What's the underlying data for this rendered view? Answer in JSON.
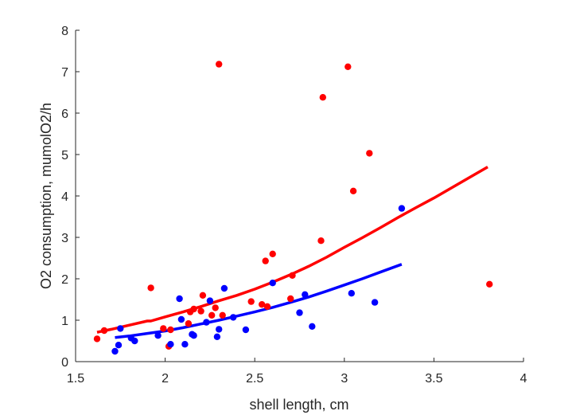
{
  "chart_data": {
    "type": "scatter",
    "title": "",
    "xlabel": "shell length, cm",
    "ylabel": "O2 consumption, mumolO2/h",
    "xlim": [
      1.5,
      4
    ],
    "ylim": [
      0,
      8
    ],
    "x_ticks": [
      1.5,
      2,
      2.5,
      3,
      3.5,
      4
    ],
    "x_tick_labels": [
      "1.5",
      "2",
      "2.5",
      "3",
      "3.5",
      "4"
    ],
    "y_ticks": [
      0,
      1,
      2,
      3,
      4,
      5,
      6,
      7,
      8
    ],
    "y_tick_labels": [
      "0",
      "1",
      "2",
      "3",
      "4",
      "5",
      "6",
      "7",
      "8"
    ],
    "grid": false,
    "series": [
      {
        "color": "#ff0000",
        "points": [
          {
            "x": 1.62,
            "y": 0.55
          },
          {
            "x": 1.66,
            "y": 0.75
          },
          {
            "x": 1.92,
            "y": 1.78
          },
          {
            "x": 1.99,
            "y": 0.8
          },
          {
            "x": 2.02,
            "y": 0.37
          },
          {
            "x": 2.03,
            "y": 0.77
          },
          {
            "x": 2.13,
            "y": 0.92
          },
          {
            "x": 2.14,
            "y": 1.2
          },
          {
            "x": 2.16,
            "y": 1.27
          },
          {
            "x": 2.2,
            "y": 1.22
          },
          {
            "x": 2.21,
            "y": 1.6
          },
          {
            "x": 2.26,
            "y": 1.12
          },
          {
            "x": 2.28,
            "y": 1.3
          },
          {
            "x": 2.3,
            "y": 7.18
          },
          {
            "x": 2.32,
            "y": 1.12
          },
          {
            "x": 2.48,
            "y": 1.45
          },
          {
            "x": 2.54,
            "y": 1.38
          },
          {
            "x": 2.56,
            "y": 2.43
          },
          {
            "x": 2.57,
            "y": 1.33
          },
          {
            "x": 2.6,
            "y": 2.6
          },
          {
            "x": 2.7,
            "y": 1.52
          },
          {
            "x": 2.71,
            "y": 2.08
          },
          {
            "x": 2.87,
            "y": 2.92
          },
          {
            "x": 2.88,
            "y": 6.38
          },
          {
            "x": 3.02,
            "y": 7.12
          },
          {
            "x": 3.05,
            "y": 4.12
          },
          {
            "x": 3.14,
            "y": 5.03
          },
          {
            "x": 3.81,
            "y": 1.87
          }
        ],
        "fit": {
          "x": [
            1.62,
            1.7,
            1.8,
            1.9,
            1.92,
            2.0,
            2.1,
            2.2,
            2.3,
            2.4,
            2.5,
            2.6,
            2.7,
            2.8,
            2.9,
            3.0,
            3.1,
            3.2,
            3.3,
            3.4,
            3.5,
            3.6,
            3.7,
            3.8
          ],
          "y": [
            0.71,
            0.78,
            0.88,
            0.98,
            0.98,
            1.08,
            1.2,
            1.33,
            1.47,
            1.6,
            1.75,
            1.92,
            2.1,
            2.3,
            2.52,
            2.76,
            2.99,
            3.23,
            3.48,
            3.72,
            3.95,
            4.2,
            4.45,
            4.7
          ]
        }
      },
      {
        "color": "#0000ff",
        "points": [
          {
            "x": 1.72,
            "y": 0.25
          },
          {
            "x": 1.74,
            "y": 0.4
          },
          {
            "x": 1.75,
            "y": 0.8
          },
          {
            "x": 1.81,
            "y": 0.57
          },
          {
            "x": 1.83,
            "y": 0.5
          },
          {
            "x": 1.96,
            "y": 0.63
          },
          {
            "x": 2.03,
            "y": 0.42
          },
          {
            "x": 2.08,
            "y": 1.52
          },
          {
            "x": 2.09,
            "y": 1.02
          },
          {
            "x": 2.11,
            "y": 0.42
          },
          {
            "x": 2.15,
            "y": 0.66
          },
          {
            "x": 2.16,
            "y": 0.63
          },
          {
            "x": 2.23,
            "y": 0.95
          },
          {
            "x": 2.25,
            "y": 1.47
          },
          {
            "x": 2.29,
            "y": 0.6
          },
          {
            "x": 2.3,
            "y": 0.78
          },
          {
            "x": 2.33,
            "y": 1.77
          },
          {
            "x": 2.38,
            "y": 1.07
          },
          {
            "x": 2.45,
            "y": 0.77
          },
          {
            "x": 2.6,
            "y": 1.9
          },
          {
            "x": 2.75,
            "y": 1.18
          },
          {
            "x": 2.78,
            "y": 1.62
          },
          {
            "x": 2.82,
            "y": 0.85
          },
          {
            "x": 3.04,
            "y": 1.65
          },
          {
            "x": 3.17,
            "y": 1.43
          },
          {
            "x": 3.32,
            "y": 3.7
          }
        ],
        "fit": {
          "x": [
            1.72,
            1.8,
            1.9,
            2.0,
            2.1,
            2.2,
            2.3,
            2.4,
            2.5,
            2.6,
            2.7,
            2.8,
            2.9,
            3.0,
            3.1,
            3.2,
            3.32
          ],
          "y": [
            0.58,
            0.62,
            0.68,
            0.74,
            0.82,
            0.91,
            1.0,
            1.1,
            1.2,
            1.31,
            1.43,
            1.56,
            1.7,
            1.85,
            2.0,
            2.16,
            2.35
          ]
        }
      }
    ]
  }
}
